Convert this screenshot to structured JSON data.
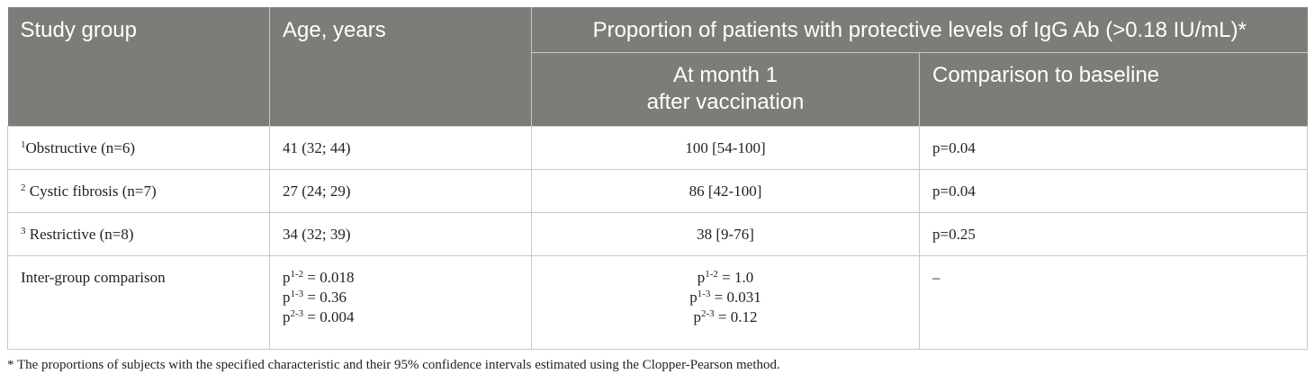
{
  "table": {
    "headers": {
      "study_group": "Study group",
      "age": "Age, years",
      "proportion": "Proportion of patients with protective levels of IgG Ab (>0.18 IU/mL)*",
      "month1_line1": "At month 1",
      "month1_line2": "after vaccination",
      "comparison": "Comparison to baseline"
    },
    "rows": [
      {
        "sup": "1",
        "group": "Obstructive (n=6)",
        "age": "41 (32; 44)",
        "month1": "100 [54-100]",
        "baseline": "p=0.04"
      },
      {
        "sup": "2",
        "group": " Cystic fibrosis (n=7)",
        "age": "27 (24; 29)",
        "month1": "86 [42-100]",
        "baseline": "p=0.04"
      },
      {
        "sup": "3",
        "group": " Restrictive (n=8)",
        "age": "34 (32; 39)",
        "month1": "38 [9-76]",
        "baseline": "p=0.25"
      }
    ],
    "intergroup": {
      "label": "Inter-group comparison",
      "age": [
        {
          "p": "p",
          "sup": "1-2",
          "value": " = 0.018"
        },
        {
          "p": "p",
          "sup": "1-3",
          "value": " = 0.36"
        },
        {
          "p": "p",
          "sup": "2-3",
          "value": " = 0.004"
        }
      ],
      "month1": [
        {
          "p": "p",
          "sup": "1-2",
          "value": " = 1.0"
        },
        {
          "p": "p",
          "sup": "1-3",
          "value": " = 0.031"
        },
        {
          "p": "p",
          "sup": "2-3",
          "value": " = 0.12"
        }
      ],
      "baseline": "–"
    }
  },
  "footnote": "* The proportions of subjects with the specified characteristic and their 95% confidence intervals estimated using the Clopper-Pearson method."
}
